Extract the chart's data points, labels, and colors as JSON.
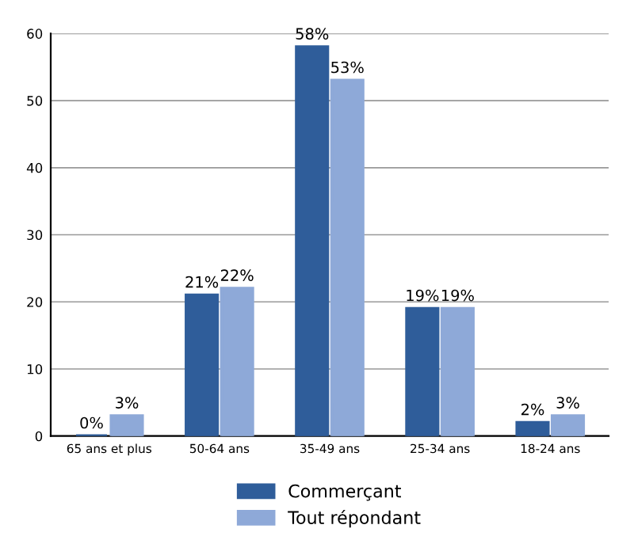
{
  "chart_data": {
    "type": "bar",
    "categories": [
      "65 ans et plus",
      "50-64 ans",
      "35-49 ans",
      "25-34 ans",
      "18-24 ans"
    ],
    "series": [
      {
        "name": "Commerçant",
        "color": "#2f5d9a",
        "values": [
          0,
          21,
          58,
          19,
          2
        ],
        "value_labels": [
          "0%",
          "21%",
          "58%",
          "19%",
          "2%"
        ]
      },
      {
        "name": "Tout répondant",
        "color": "#8ea9d8",
        "values": [
          3,
          22,
          53,
          19,
          3
        ],
        "value_labels": [
          "3%",
          "22%",
          "53%",
          "19%",
          "3%"
        ]
      }
    ],
    "ylim": [
      0,
      60
    ],
    "yticks": [
      0,
      10,
      20,
      30,
      40,
      50,
      60
    ],
    "grid": "y",
    "legend": "bottom"
  }
}
